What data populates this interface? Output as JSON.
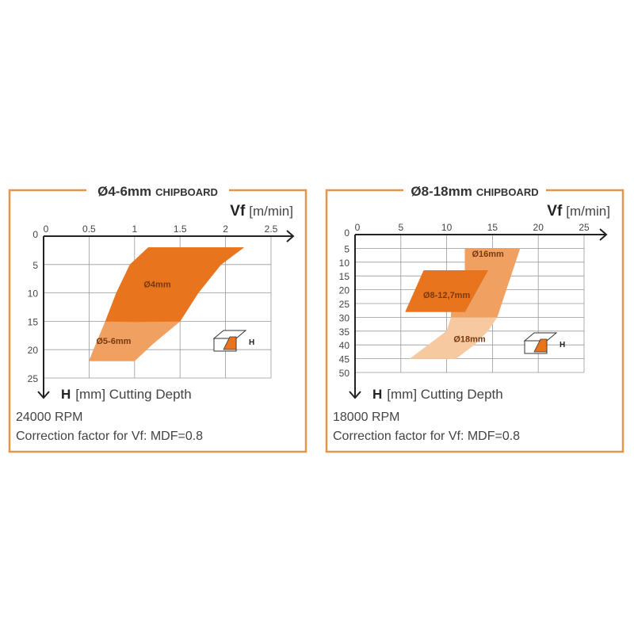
{
  "colors": {
    "frame": "#e3954a",
    "dark": "#e8741e",
    "medium": "#f0a060",
    "light": "#f6c9a0",
    "grid": "#999999",
    "axis": "#222222"
  },
  "chart_data": [
    {
      "type": "area",
      "title_main": "Ø4-6mm",
      "title_sub": "Chipboard",
      "xlabel_symbol": "Vf",
      "xlabel_unit": "[m/min]",
      "ylabel_symbol": "H",
      "ylabel_rest": "[mm] Cutting Depth",
      "xlim": [
        0,
        2.5
      ],
      "ylim": [
        0,
        25
      ],
      "y_inverted": true,
      "grid": true,
      "xticks": [
        "0",
        "0.5",
        "1",
        "1.5",
        "2",
        "2.5"
      ],
      "yticks": [
        "0",
        "5",
        "10",
        "15",
        "20",
        "25"
      ],
      "regions": [
        {
          "name": "Ø4mm",
          "shade": "dark",
          "label_at": [
            1.25,
            9
          ],
          "polygon": [
            [
              1.15,
              2
            ],
            [
              2.2,
              2
            ],
            [
              1.95,
              5
            ],
            [
              1.7,
              10
            ],
            [
              1.5,
              15
            ],
            [
              0.68,
              15
            ],
            [
              0.8,
              10
            ],
            [
              0.95,
              5
            ]
          ]
        },
        {
          "name": "Ø5-6mm",
          "shade": "medium",
          "label_at": [
            0.77,
            19
          ],
          "polygon": [
            [
              0.68,
              15
            ],
            [
              1.5,
              15
            ],
            [
              1.2,
              19
            ],
            [
              1.0,
              22
            ],
            [
              0.5,
              22
            ],
            [
              0.55,
              20
            ]
          ]
        },
        {
          "name": "",
          "shade": "dark",
          "label_at": null,
          "polygon": [
            [
              0.68,
              15
            ],
            [
              1.5,
              15
            ],
            [
              1.0,
              15.1
            ]
          ]
        }
      ],
      "notes": [
        "24000 RPM",
        "Correction factor for Vf: MDF=0.8"
      ]
    },
    {
      "type": "area",
      "title_main": "Ø8-18mm",
      "title_sub": "Chipboard",
      "xlabel_symbol": "Vf",
      "xlabel_unit": "[m/min]",
      "ylabel_symbol": "H",
      "ylabel_rest": "[mm] Cutting Depth",
      "xlim": [
        0,
        25
      ],
      "ylim": [
        0,
        50
      ],
      "y_inverted": true,
      "grid": true,
      "xticks": [
        "0",
        "5",
        "10",
        "15",
        "20",
        "25"
      ],
      "yticks": [
        "0",
        "5",
        "10",
        "15",
        "20",
        "25",
        "30",
        "35",
        "40",
        "45",
        "50"
      ],
      "regions": [
        {
          "name": "Ø18mm",
          "shade": "light",
          "label_at": [
            12.5,
            39
          ],
          "polygon": [
            [
              10.5,
              30
            ],
            [
              15.5,
              30
            ],
            [
              14.5,
              35
            ],
            [
              13,
              40
            ],
            [
              11,
              45
            ],
            [
              6,
              45
            ],
            [
              8,
              40
            ],
            [
              10,
              35
            ]
          ]
        },
        {
          "name": "Ø16mm",
          "shade": "medium",
          "label_at": [
            14.5,
            8
          ],
          "polygon": [
            [
              12,
              5
            ],
            [
              18,
              5
            ],
            [
              17,
              15
            ],
            [
              16,
              25
            ],
            [
              15.5,
              30
            ],
            [
              10.5,
              30
            ],
            [
              10.5,
              28
            ],
            [
              12,
              13
            ],
            [
              12,
              5
            ]
          ]
        },
        {
          "name": "Ø8-12,7mm",
          "shade": "dark",
          "label_at": [
            10,
            23
          ],
          "polygon": [
            [
              7.5,
              13
            ],
            [
              14.5,
              13
            ],
            [
              12,
              28
            ],
            [
              5.5,
              28
            ]
          ]
        }
      ],
      "notes": [
        "18000 RPM",
        "Correction factor for Vf: MDF=0.8"
      ]
    }
  ]
}
